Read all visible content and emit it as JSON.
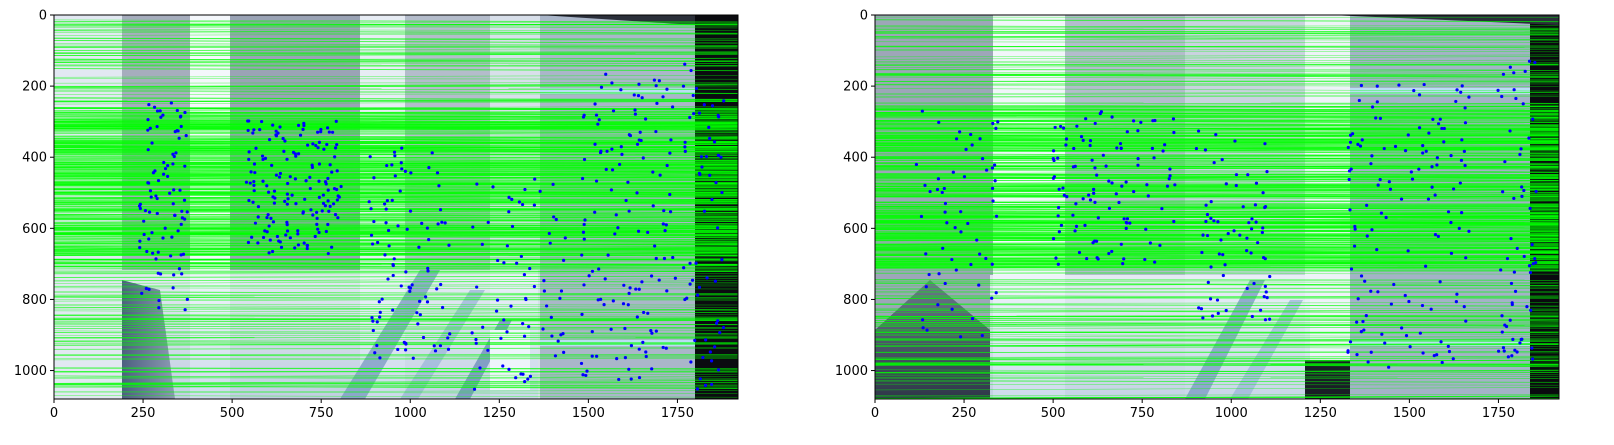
{
  "figure": {
    "panels": [
      {
        "name": "left",
        "xticks": [
          "0",
          "250",
          "500",
          "750",
          "1000",
          "1250",
          "1500",
          "1750"
        ],
        "yticks": [
          "0",
          "200",
          "400",
          "600",
          "800",
          "1000"
        ]
      },
      {
        "name": "right",
        "xticks": [
          "0",
          "250",
          "500",
          "750",
          "1000",
          "1250",
          "1500",
          "1750"
        ],
        "yticks": [
          "0",
          "200",
          "400",
          "600",
          "800",
          "1000"
        ]
      }
    ],
    "colors": {
      "match_line": "#00ff00",
      "keypoint": "#0000ff",
      "axis": "#000000"
    }
  },
  "chart_data": [
    {
      "type": "scatter",
      "title": "",
      "xlabel": "",
      "ylabel": "",
      "xlim": [
        0,
        1920
      ],
      "ylim": [
        1080,
        0
      ],
      "x_ticks": [
        0,
        250,
        500,
        750,
        1000,
        1250,
        1500,
        1750
      ],
      "y_ticks": [
        0,
        200,
        400,
        600,
        800,
        1000
      ],
      "grid": false,
      "series": [
        {
          "values": []
        }
      ]
    },
    {
      "type": "scatter",
      "title": "",
      "xlabel": "",
      "ylabel": "",
      "xlim": [
        0,
        1920
      ],
      "ylim": [
        1080,
        0
      ],
      "x_ticks": [
        0,
        250,
        500,
        750,
        1000,
        1250,
        1500,
        1750
      ],
      "y_ticks": [
        0,
        200,
        400,
        600,
        800,
        1000
      ],
      "grid": false,
      "series": [
        {
          "values": []
        }
      ]
    }
  ]
}
